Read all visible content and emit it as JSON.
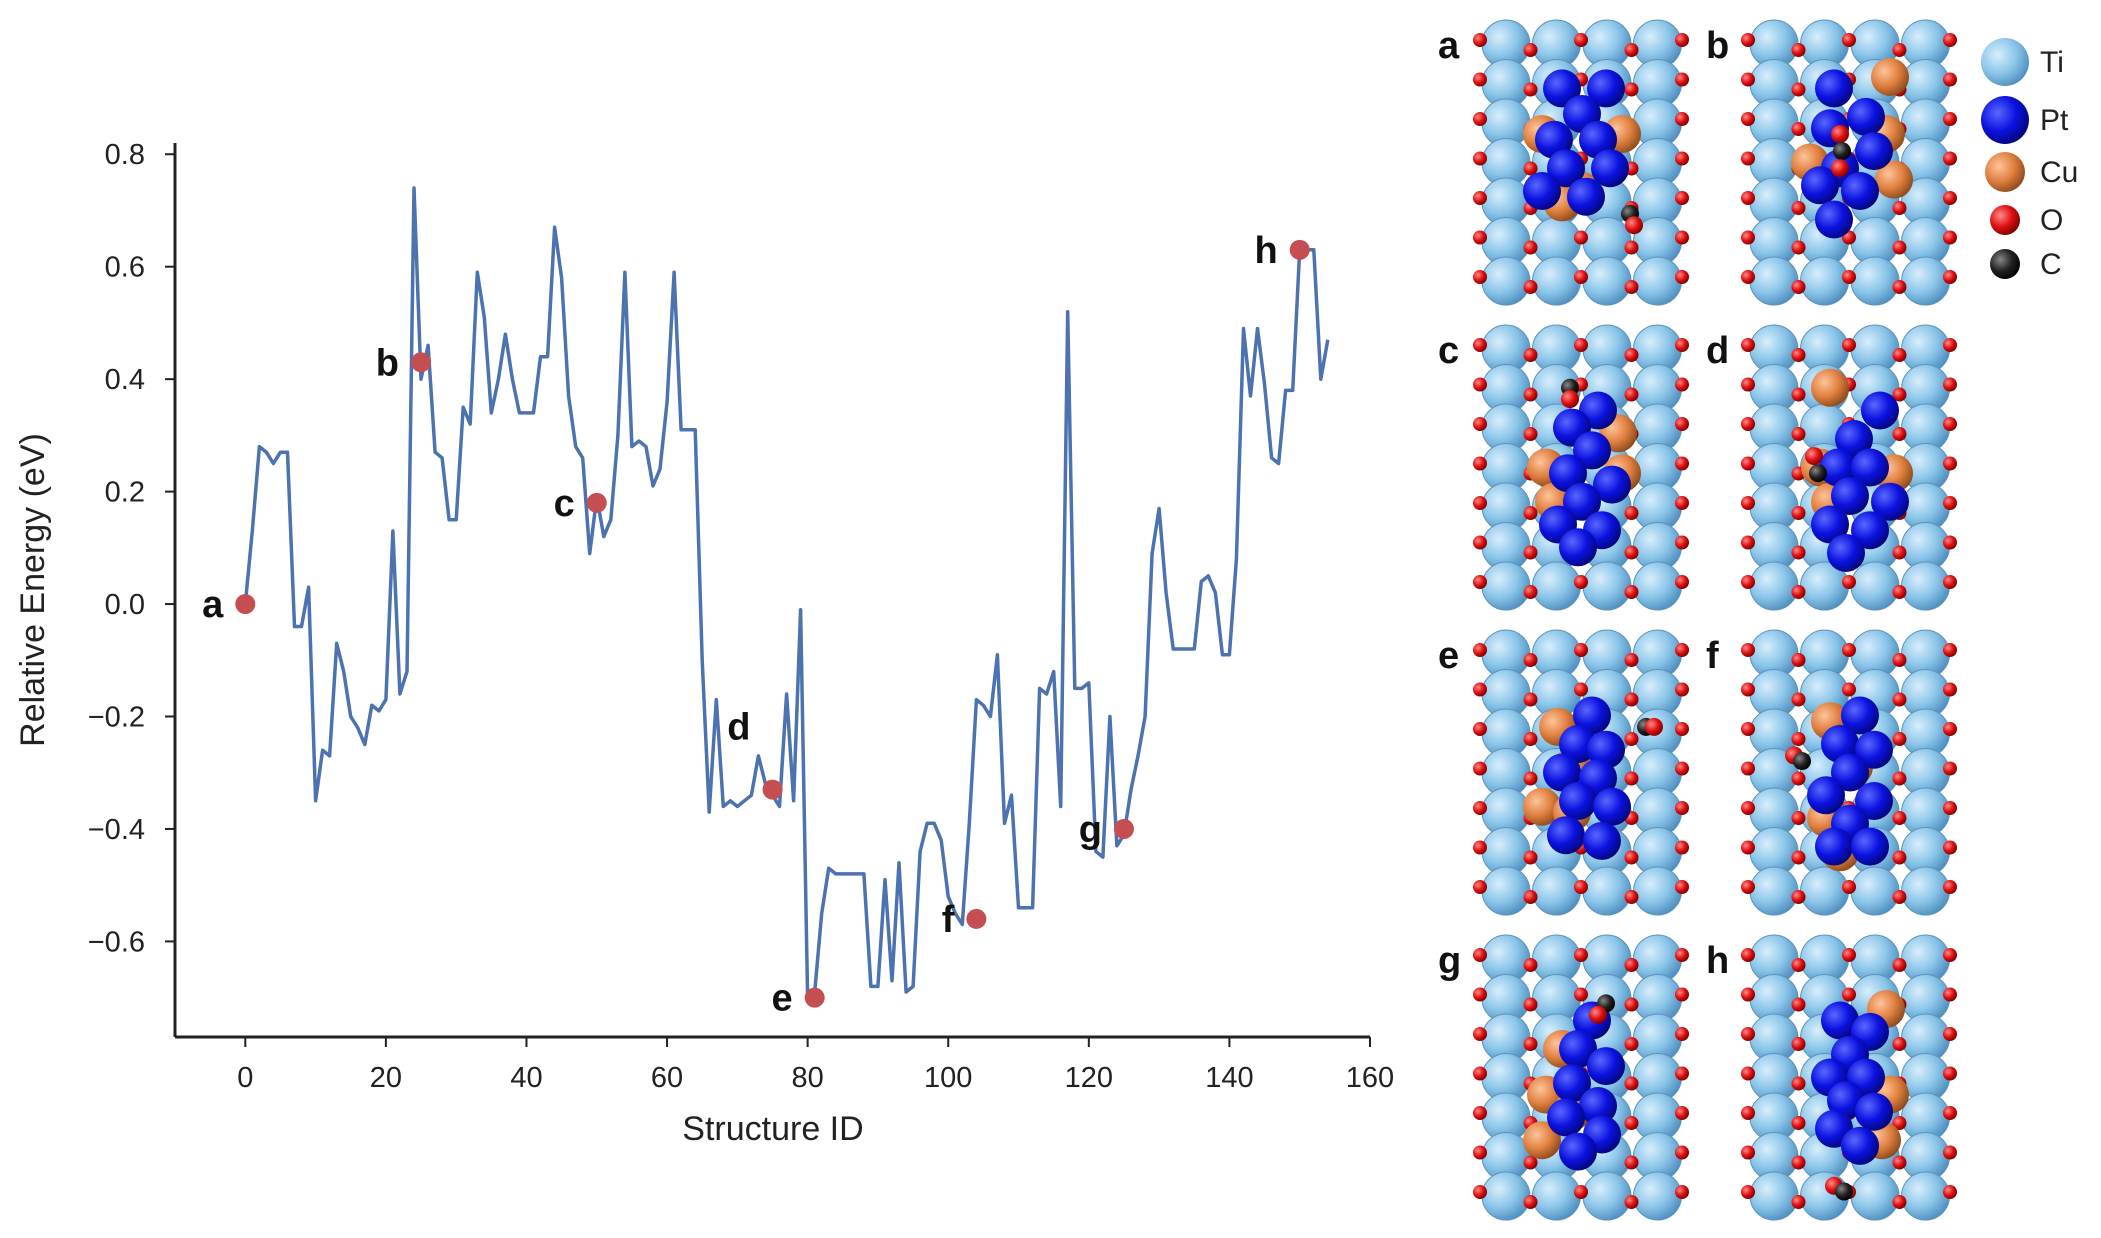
{
  "chart_data": {
    "type": "line",
    "title": "",
    "xlabel": "Structure ID",
    "ylabel": "Relative Energy (eV)",
    "xlim": [
      -10,
      160
    ],
    "ylim": [
      -0.77,
      0.82
    ],
    "x_ticks": [
      0,
      20,
      40,
      60,
      80,
      100,
      120,
      140,
      160
    ],
    "x_tick_labels": [
      "0",
      "20",
      "40",
      "60",
      "80",
      "100",
      "120",
      "140",
      "160"
    ],
    "y_ticks": [
      -0.6,
      -0.4,
      -0.2,
      0.0,
      0.2,
      0.4,
      0.6,
      0.8
    ],
    "y_tick_labels": [
      "−0.6",
      "−0.4",
      "−0.2",
      "0.0",
      "0.2",
      "0.4",
      "0.6",
      "0.8"
    ],
    "grid": false,
    "series": [
      {
        "name": "Relative Energy",
        "color": "#4C72B0",
        "x": [
          0,
          1,
          2,
          3,
          4,
          5,
          6,
          7,
          8,
          9,
          10,
          11,
          12,
          13,
          14,
          15,
          16,
          17,
          18,
          19,
          20,
          21,
          22,
          23,
          24,
          25,
          26,
          27,
          28,
          29,
          30,
          31,
          32,
          33,
          34,
          35,
          36,
          37,
          38,
          39,
          40,
          41,
          42,
          43,
          44,
          45,
          46,
          47,
          48,
          49,
          50,
          51,
          52,
          53,
          54,
          55,
          56,
          57,
          58,
          59,
          60,
          61,
          62,
          63,
          64,
          65,
          66,
          67,
          68,
          69,
          70,
          71,
          72,
          73,
          74,
          75,
          76,
          77,
          78,
          79,
          80,
          81,
          82,
          83,
          84,
          85,
          86,
          87,
          88,
          89,
          90,
          91,
          92,
          93,
          94,
          95,
          96,
          97,
          98,
          99,
          100,
          101,
          102,
          103,
          104,
          105,
          106,
          107,
          108,
          109,
          110,
          111,
          112,
          113,
          114,
          115,
          116,
          117,
          118,
          119,
          120,
          121,
          122,
          123,
          124,
          125,
          126,
          127,
          128,
          129,
          130,
          131,
          132,
          133,
          134,
          135,
          136,
          137,
          138,
          139,
          140,
          141,
          142,
          143,
          144,
          145,
          146,
          147,
          148,
          149,
          150,
          151,
          152,
          153,
          154
        ],
        "y": [
          0.0,
          0.13,
          0.28,
          0.27,
          0.25,
          0.27,
          0.27,
          -0.04,
          -0.04,
          0.03,
          -0.35,
          -0.26,
          -0.27,
          -0.07,
          -0.12,
          -0.2,
          -0.22,
          -0.25,
          -0.18,
          -0.19,
          -0.17,
          0.13,
          -0.16,
          -0.12,
          0.74,
          0.4,
          0.46,
          0.27,
          0.26,
          0.15,
          0.15,
          0.35,
          0.32,
          0.59,
          0.51,
          0.34,
          0.4,
          0.48,
          0.4,
          0.34,
          0.34,
          0.34,
          0.44,
          0.44,
          0.67,
          0.58,
          0.37,
          0.28,
          0.26,
          0.09,
          0.19,
          0.12,
          0.15,
          0.3,
          0.59,
          0.28,
          0.29,
          0.28,
          0.21,
          0.24,
          0.36,
          0.59,
          0.31,
          0.31,
          0.31,
          -0.1,
          -0.37,
          -0.17,
          -0.36,
          -0.35,
          -0.36,
          -0.35,
          -0.34,
          -0.27,
          -0.32,
          -0.34,
          -0.36,
          -0.16,
          -0.35,
          -0.01,
          -0.7,
          -0.69,
          -0.55,
          -0.47,
          -0.48,
          -0.48,
          -0.48,
          -0.48,
          -0.48,
          -0.68,
          -0.68,
          -0.49,
          -0.67,
          -0.46,
          -0.69,
          -0.68,
          -0.44,
          -0.39,
          -0.39,
          -0.42,
          -0.52,
          -0.55,
          -0.57,
          -0.39,
          -0.17,
          -0.18,
          -0.2,
          -0.09,
          -0.39,
          -0.34,
          -0.54,
          -0.54,
          -0.54,
          -0.15,
          -0.16,
          -0.12,
          -0.36,
          0.52,
          -0.15,
          -0.15,
          -0.14,
          -0.44,
          -0.45,
          -0.2,
          -0.43,
          -0.41,
          -0.33,
          -0.27,
          -0.2,
          0.09,
          0.17,
          0.02,
          -0.08,
          -0.08,
          -0.08,
          -0.08,
          0.04,
          0.05,
          0.02,
          -0.09,
          -0.09,
          0.08,
          0.49,
          0.37,
          0.49,
          0.39,
          0.26,
          0.25,
          0.38,
          0.38,
          0.63,
          0.63,
          0.63,
          0.4,
          0.47
        ]
      }
    ],
    "highlighted_points": [
      {
        "label": "a",
        "x": 0,
        "y": 0.0,
        "label_side": "left"
      },
      {
        "label": "b",
        "x": 25,
        "y": 0.43,
        "label_side": "left"
      },
      {
        "label": "c",
        "x": 50,
        "y": 0.18,
        "label_side": "left"
      },
      {
        "label": "d",
        "x": 75,
        "y": -0.33,
        "label_side": "upper-left"
      },
      {
        "label": "e",
        "x": 81,
        "y": -0.7,
        "label_side": "left"
      },
      {
        "label": "f",
        "x": 104,
        "y": -0.56,
        "label_side": "left"
      },
      {
        "label": "g",
        "x": 125,
        "y": -0.4,
        "label_side": "left"
      },
      {
        "label": "h",
        "x": 150,
        "y": 0.63,
        "label_side": "left"
      }
    ],
    "marker_color": "#C44E52"
  },
  "structure_panels": [
    {
      "letter": "a"
    },
    {
      "letter": "b"
    },
    {
      "letter": "c"
    },
    {
      "letter": "d"
    },
    {
      "letter": "e"
    },
    {
      "letter": "f"
    },
    {
      "letter": "g"
    },
    {
      "letter": "h"
    }
  ],
  "legend": {
    "entries": [
      {
        "label": "Ti",
        "color": "#87C3E8",
        "size": "large"
      },
      {
        "label": "Pt",
        "color": "#0A10E0",
        "size": "large"
      },
      {
        "label": "Cu",
        "color": "#E08040",
        "size": "medium"
      },
      {
        "label": "O",
        "color": "#E01010",
        "size": "small"
      },
      {
        "label": "C",
        "color": "#202020",
        "size": "small"
      }
    ]
  }
}
